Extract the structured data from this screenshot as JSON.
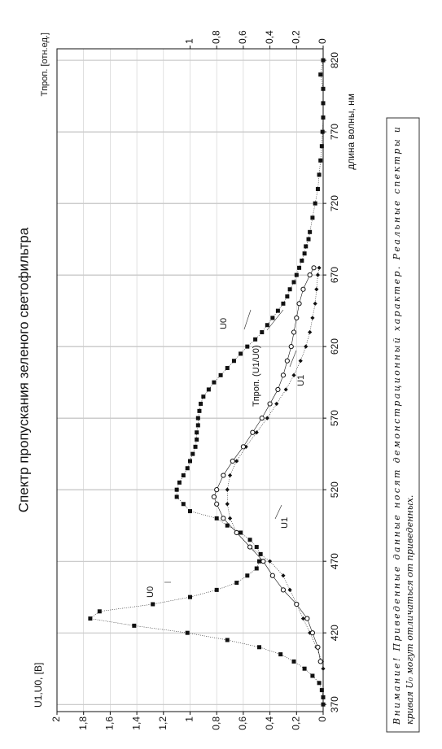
{
  "chart_data": {
    "type": "scatter",
    "title": "Спектр пропускания зеленого светофильтра",
    "y_label": "U1,U0, [B]",
    "y2_label": "Tпроп. [отн.ед.]",
    "x_label": "длина волны, нм",
    "xlim": [
      365,
      828
    ],
    "xticks": [
      370,
      420,
      470,
      520,
      570,
      620,
      670,
      720,
      770,
      820
    ],
    "ylim": [
      0,
      2
    ],
    "yticks": [
      0,
      {
        "value": 0.2,
        "label": "0,2"
      },
      {
        "value": 0.4,
        "label": "0,4"
      },
      {
        "value": 0.6,
        "label": "0,6"
      },
      {
        "value": 0.8,
        "label": "0,8"
      },
      1,
      {
        "value": 1.2,
        "label": "1,2"
      },
      {
        "value": 1.4,
        "label": "1,4"
      },
      {
        "value": 1.6,
        "label": "1,6"
      },
      {
        "value": 1.8,
        "label": "1,8"
      },
      2
    ],
    "y2lim": [
      0,
      2
    ],
    "y2ticks": [
      0,
      {
        "value": 0.2,
        "label": "0,2"
      },
      {
        "value": 0.4,
        "label": "0,4"
      },
      {
        "value": 0.6,
        "label": "0,6"
      },
      {
        "value": 0.8,
        "label": "0,8"
      },
      1
    ],
    "grid": true,
    "series": [
      {
        "name": "U0",
        "color": "#111111",
        "marker": "square",
        "x": [
          370,
          375,
          380,
          385,
          390,
          395,
          400,
          405,
          410,
          415,
          420,
          425,
          430,
          435,
          440,
          445,
          450,
          455,
          460,
          465,
          470,
          475,
          480,
          485,
          490,
          495,
          500,
          505,
          510,
          515,
          520,
          525,
          530,
          535,
          540,
          545,
          550,
          555,
          560,
          565,
          570,
          575,
          580,
          585,
          590,
          595,
          600,
          605,
          610,
          615,
          620,
          625,
          630,
          635,
          640,
          645,
          650,
          655,
          660,
          665,
          670,
          675,
          680,
          685,
          690,
          695,
          700,
          710,
          720,
          730,
          740,
          750,
          760,
          770,
          780,
          790,
          800,
          810,
          820
        ],
        "values": [
          0,
          0,
          0.01,
          0.03,
          0.08,
          0.14,
          0.22,
          0.32,
          0.48,
          0.72,
          1.02,
          1.42,
          1.75,
          1.68,
          1.28,
          1.0,
          0.8,
          0.65,
          0.57,
          0.5,
          0.48,
          0.47,
          0.5,
          0.55,
          0.62,
          0.72,
          0.8,
          1.0,
          1.05,
          1.1,
          1.1,
          1.08,
          1.05,
          1.02,
          1.0,
          0.98,
          0.96,
          0.95,
          0.95,
          0.94,
          0.94,
          0.93,
          0.92,
          0.9,
          0.86,
          0.82,
          0.77,
          0.72,
          0.67,
          0.62,
          0.57,
          0.51,
          0.46,
          0.42,
          0.38,
          0.34,
          0.3,
          0.27,
          0.25,
          0.22,
          0.2,
          0.18,
          0.16,
          0.14,
          0.13,
          0.11,
          0.1,
          0.08,
          0.06,
          0.04,
          0.03,
          0.02,
          0.01,
          0.005,
          0,
          0,
          0,
          0.02,
          0
        ]
      },
      {
        "name": "U1",
        "color": "#111111",
        "marker": "diamond",
        "x": [
          395,
          400,
          410,
          420,
          430,
          440,
          450,
          460,
          470,
          480,
          490,
          500,
          510,
          520,
          530,
          540,
          550,
          560,
          570,
          580,
          590,
          600,
          610,
          620,
          630,
          640,
          650,
          660,
          670,
          675
        ],
        "values": [
          0,
          0.01,
          0.05,
          0.1,
          0.15,
          0.2,
          0.25,
          0.3,
          0.4,
          0.55,
          0.65,
          0.7,
          0.72,
          0.72,
          0.7,
          0.65,
          0.58,
          0.5,
          0.42,
          0.35,
          0.28,
          0.22,
          0.17,
          0.13,
          0.1,
          0.08,
          0.06,
          0.05,
          0.04,
          0.03
        ]
      },
      {
        "name": "Tпроп. (U1/U0)",
        "color": "#111111",
        "marker": "circle",
        "axis": "y2",
        "x": [
          400,
          410,
          420,
          430,
          440,
          450,
          460,
          470,
          480,
          490,
          500,
          510,
          515,
          520,
          530,
          540,
          550,
          560,
          570,
          580,
          590,
          600,
          610,
          620,
          630,
          640,
          650,
          660,
          670,
          675
        ],
        "values": [
          0.02,
          0.04,
          0.08,
          0.12,
          0.2,
          0.3,
          0.38,
          0.45,
          0.55,
          0.65,
          0.75,
          0.8,
          0.82,
          0.8,
          0.75,
          0.68,
          0.6,
          0.53,
          0.46,
          0.4,
          0.34,
          0.3,
          0.27,
          0.24,
          0.22,
          0.2,
          0.18,
          0.15,
          0.1,
          0.07
        ]
      }
    ],
    "annotations": [
      "U0",
      "U1",
      "U0",
      "Tпроп. (U1/U0)",
      "U1"
    ]
  },
  "note": {
    "lines": [
      "Внимание! Приведенные данные носят демонстрационный характер. Реальные спектры и",
      "кривая U₀ могут отличаться от приведенных."
    ]
  }
}
